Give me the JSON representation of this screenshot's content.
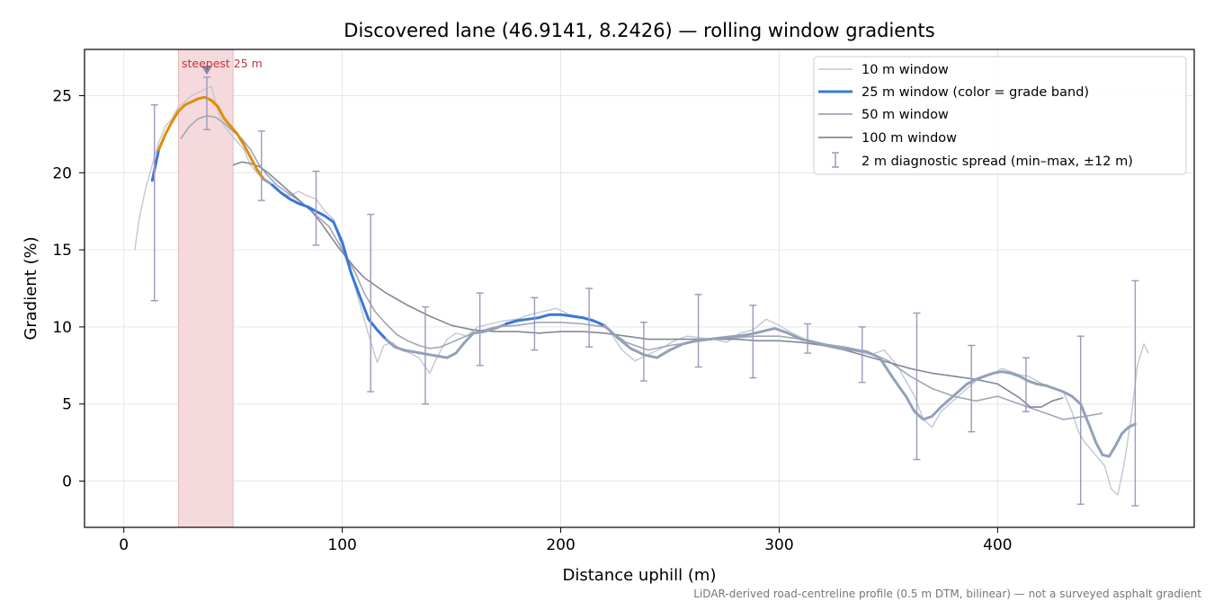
{
  "chart_data": {
    "type": "line",
    "title": "Discovered lane (46.9141, 8.2426) — rolling window gradients",
    "xlabel": "Distance uphill (m)",
    "ylabel": "Gradient (%)",
    "xlim": [
      -18,
      490
    ],
    "ylim": [
      -3,
      28
    ],
    "xticks": [
      0,
      100,
      200,
      300,
      400
    ],
    "yticks": [
      0,
      5,
      10,
      15,
      20,
      25
    ],
    "grid": true,
    "legend_position": "top-right",
    "footnote": "LiDAR-derived road-centreline profile (0.5 m DTM, bilinear) — not a surveyed asphalt gradient",
    "highlight": {
      "x_start": 25,
      "x_end": 50,
      "label": "steepest 25 m",
      "peak_x": 38,
      "peak_y": 26.7
    },
    "colors": {
      "w10": "#c3c7d1",
      "w25_grey": "#93a1b8",
      "w25_blue": "#3a78d6",
      "w25_orange": "#e08c0a",
      "w50": "#a1a6b4",
      "w100": "#818899",
      "errbar": "#9d98bb",
      "highlight": "#f4dadc",
      "highlight_label": "#c8323c"
    },
    "series": [
      {
        "name": "10 m window",
        "x": [
          5,
          7,
          10,
          13,
          16,
          19,
          22,
          25,
          28,
          31,
          34,
          37,
          40,
          43,
          46,
          49,
          52,
          55,
          58,
          61,
          64,
          68,
          72,
          76,
          80,
          84,
          88,
          92,
          96,
          100,
          104,
          108,
          112,
          116,
          119,
          123,
          127,
          131,
          135,
          140,
          144,
          148,
          152,
          157,
          162,
          168,
          174,
          180,
          186,
          192,
          198,
          204,
          210,
          216,
          222,
          228,
          234,
          240,
          246,
          252,
          258,
          264,
          270,
          276,
          282,
          288,
          294,
          300,
          306,
          312,
          318,
          324,
          330,
          336,
          342,
          348,
          354,
          358,
          362,
          366,
          370,
          374,
          378,
          382,
          386,
          390,
          394,
          398,
          402,
          406,
          410,
          414,
          418,
          422,
          426,
          430,
          434,
          437,
          440,
          443,
          446,
          449,
          452,
          455,
          458,
          461,
          464,
          467,
          469
        ],
        "y": [
          15,
          17,
          19,
          20.5,
          22,
          23,
          23.5,
          24.3,
          24.6,
          25,
          25.2,
          25.4,
          25.6,
          24,
          23,
          22.5,
          22,
          21.5,
          20.5,
          20,
          19.5,
          19.2,
          18.7,
          18.5,
          18.8,
          18.5,
          18.3,
          17.5,
          17,
          15,
          13.5,
          11.5,
          9.5,
          7.7,
          8.8,
          9,
          8.5,
          8.3,
          8,
          7,
          8.2,
          9.2,
          9.6,
          9.4,
          10,
          10.2,
          10.4,
          10.5,
          10.8,
          11,
          11.2,
          10.8,
          10.6,
          10.3,
          9.8,
          8.5,
          7.8,
          8.2,
          8.6,
          9.1,
          9.4,
          9.3,
          9.2,
          9,
          9.6,
          9.8,
          10.5,
          10.1,
          9.6,
          9.2,
          9,
          8.8,
          8.6,
          8.4,
          8.2,
          8.5,
          7.5,
          6.5,
          5.5,
          4,
          3.5,
          4.5,
          5,
          5.5,
          6,
          6.5,
          6.8,
          7,
          7.3,
          7.1,
          6.9,
          6.8,
          6.5,
          6.2,
          6,
          5.8,
          4.5,
          3.2,
          2.5,
          2,
          1.5,
          1,
          -0.5,
          -0.9,
          1.2,
          4,
          7.5,
          8.9,
          8.3
        ]
      },
      {
        "name": "25 m window (color = grade band)",
        "x": [
          13,
          16,
          19,
          22,
          25,
          28,
          31,
          34,
          37,
          40,
          43,
          46,
          49,
          52,
          55,
          58,
          61,
          64,
          68,
          72,
          76,
          80,
          84,
          88,
          92,
          96,
          100,
          104,
          108,
          112,
          116,
          120,
          124,
          128,
          132,
          136,
          140,
          144,
          148,
          152,
          156,
          160,
          165,
          170,
          175,
          180,
          185,
          190,
          195,
          200,
          205,
          210,
          215,
          220,
          226,
          232,
          238,
          244,
          250,
          256,
          262,
          268,
          274,
          280,
          286,
          292,
          298,
          304,
          310,
          316,
          322,
          328,
          334,
          340,
          346,
          352,
          358,
          362,
          366,
          370,
          374,
          378,
          382,
          386,
          390,
          394,
          398,
          402,
          406,
          410,
          414,
          418,
          422,
          426,
          430,
          434,
          438,
          442,
          445,
          448,
          451,
          454,
          457,
          460,
          463
        ],
        "y": [
          19.5,
          21.5,
          22.5,
          23.3,
          24,
          24.4,
          24.6,
          24.8,
          24.9,
          24.7,
          24.3,
          23.5,
          23,
          22.5,
          21.8,
          21,
          20.2,
          19.6,
          19.2,
          18.7,
          18.3,
          18,
          17.8,
          17.5,
          17.2,
          16.8,
          15.5,
          13.5,
          12,
          10.5,
          9.8,
          9.2,
          8.7,
          8.5,
          8.4,
          8.3,
          8.2,
          8.1,
          8,
          8.3,
          9,
          9.6,
          9.7,
          9.9,
          10.2,
          10.4,
          10.5,
          10.6,
          10.8,
          10.8,
          10.7,
          10.6,
          10.4,
          10.1,
          9.3,
          8.6,
          8.2,
          8,
          8.5,
          8.9,
          9.1,
          9.2,
          9.3,
          9.4,
          9.5,
          9.7,
          9.9,
          9.6,
          9.2,
          9,
          8.8,
          8.6,
          8.5,
          8.4,
          8,
          6.7,
          5.5,
          4.5,
          4,
          4.2,
          4.8,
          5.3,
          5.8,
          6.3,
          6.6,
          6.8,
          7,
          7.1,
          7,
          6.8,
          6.5,
          6.3,
          6.2,
          6,
          5.8,
          5.5,
          5,
          3.6,
          2.5,
          1.7,
          1.6,
          2.3,
          3.1,
          3.5,
          3.7
        ]
      },
      {
        "name": "50 m window",
        "x": [
          26,
          30,
          34,
          38,
          42,
          46,
          50,
          54,
          58,
          62,
          66,
          70,
          74,
          78,
          82,
          86,
          90,
          94,
          98,
          102,
          106,
          110,
          115,
          120,
          125,
          130,
          135,
          140,
          145,
          150,
          155,
          160,
          165,
          170,
          180,
          190,
          200,
          210,
          220,
          230,
          240,
          250,
          260,
          270,
          280,
          290,
          300,
          310,
          320,
          330,
          340,
          350,
          360,
          370,
          380,
          390,
          400,
          410,
          420,
          430,
          440,
          448
        ],
        "y": [
          22.2,
          23,
          23.5,
          23.7,
          23.6,
          23.2,
          22.7,
          22.2,
          21.5,
          20.5,
          19.8,
          19.2,
          18.8,
          18.4,
          18,
          17.5,
          17,
          16.5,
          15.5,
          14.5,
          13.5,
          12.2,
          11,
          10.2,
          9.5,
          9.1,
          8.8,
          8.6,
          8.7,
          9,
          9.3,
          9.6,
          9.8,
          10,
          10.1,
          10.3,
          10.3,
          10.2,
          10,
          9,
          8.5,
          8.8,
          9,
          9.2,
          9.3,
          9.4,
          9.4,
          9.2,
          8.9,
          8.7,
          8.4,
          7.8,
          6.8,
          6,
          5.5,
          5.2,
          5.5,
          5,
          4.5,
          4,
          4.2,
          4.4
        ]
      },
      {
        "name": "100 m window",
        "x": [
          50,
          54,
          58,
          62,
          66,
          70,
          74,
          78,
          82,
          86,
          90,
          94,
          98,
          102,
          106,
          110,
          115,
          120,
          125,
          130,
          140,
          150,
          160,
          170,
          180,
          190,
          200,
          210,
          220,
          230,
          240,
          250,
          260,
          270,
          280,
          290,
          300,
          310,
          320,
          330,
          340,
          350,
          360,
          370,
          380,
          390,
          400,
          410,
          415,
          420,
          425,
          430
        ],
        "y": [
          20.5,
          20.7,
          20.6,
          20.4,
          20,
          19.5,
          19,
          18.5,
          18,
          17.5,
          16.8,
          16,
          15.2,
          14.5,
          13.8,
          13.2,
          12.7,
          12.2,
          11.8,
          11.4,
          10.7,
          10.1,
          9.8,
          9.7,
          9.7,
          9.6,
          9.7,
          9.7,
          9.6,
          9.4,
          9.2,
          9.2,
          9.2,
          9.2,
          9.2,
          9.1,
          9.1,
          9,
          8.8,
          8.5,
          8.1,
          7.7,
          7.3,
          7,
          6.8,
          6.6,
          6.3,
          5.4,
          4.8,
          4.8,
          5.2,
          5.4
        ]
      },
      {
        "name": "2 m diagnostic spread (min–max, ±12 m)",
        "x": [
          14,
          38,
          63,
          88,
          113,
          138,
          163,
          188,
          213,
          238,
          263,
          288,
          313,
          338,
          363,
          388,
          413,
          438,
          463
        ],
        "ymin": [
          11.7,
          22.8,
          18.2,
          15.3,
          5.8,
          5,
          7.5,
          8.5,
          8.7,
          6.5,
          7.4,
          6.7,
          8.3,
          6.4,
          1.4,
          3.2,
          4.5,
          -1.5,
          -1.6
        ],
        "ymax": [
          24.4,
          26.2,
          22.7,
          20.1,
          17.3,
          11.3,
          12.2,
          11.9,
          12.5,
          10.3,
          12.1,
          11.4,
          10.2,
          10,
          10.9,
          8.8,
          8,
          9.4,
          13
        ]
      }
    ],
    "w25_bands": [
      {
        "color": "blue",
        "x_from": 11,
        "x_to": 15
      },
      {
        "color": "orange",
        "x_from": 15,
        "x_to": 63
      },
      {
        "color": "grey",
        "x_from": 63,
        "x_to": 67
      },
      {
        "color": "blue",
        "x_from": 67,
        "x_to": 118
      },
      {
        "color": "grey",
        "x_from": 118,
        "x_to": 174
      },
      {
        "color": "blue",
        "x_from": 174,
        "x_to": 218
      },
      {
        "color": "grey",
        "x_from": 218,
        "x_to": 470
      }
    ]
  }
}
